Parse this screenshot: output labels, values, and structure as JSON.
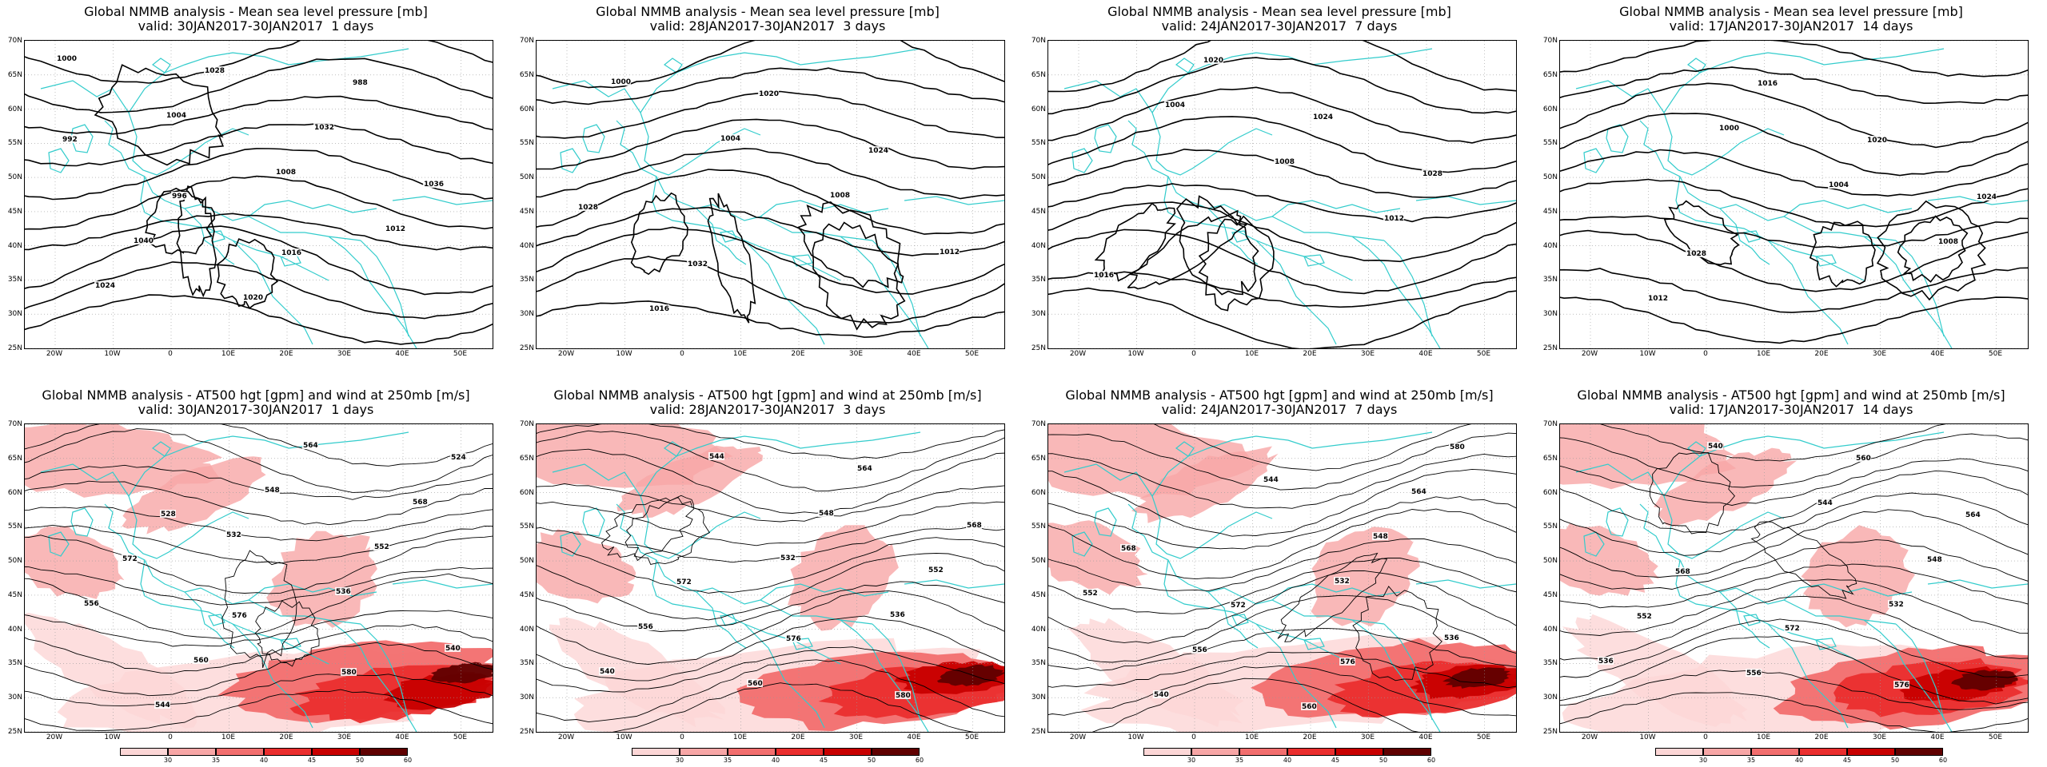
{
  "panels": [
    {
      "row": "mslp",
      "title1": "Global NMMB analysis - Mean sea level pressure [mb]",
      "title2": "valid: 30JAN2017-30JAN2017  1 days",
      "labels": [
        "1000",
        "1004",
        "1008",
        "1012",
        "1024",
        "1028",
        "1032",
        "1036",
        "1040",
        "1020",
        "988",
        "992",
        "996",
        "1016"
      ]
    },
    {
      "row": "mslp",
      "title1": "Global NMMB analysis - Mean sea level pressure [mb]",
      "title2": "valid: 28JAN2017-30JAN2017  3 days",
      "labels": [
        "1000",
        "1004",
        "1008",
        "1012",
        "1016",
        "1020",
        "1024",
        "1028",
        "1032"
      ]
    },
    {
      "row": "mslp",
      "title1": "Global NMMB analysis - Mean sea level pressure [mb]",
      "title2": "valid: 24JAN2017-30JAN2017  7 days",
      "labels": [
        "1004",
        "1008",
        "1012",
        "1016",
        "1020",
        "1024",
        "1028"
      ]
    },
    {
      "row": "mslp",
      "title1": "Global NMMB analysis - Mean sea level pressure [mb]",
      "title2": "valid: 17JAN2017-30JAN2017  14 days",
      "labels": [
        "1000",
        "1004",
        "1008",
        "1012",
        "1016",
        "1020",
        "1024",
        "1028"
      ]
    },
    {
      "row": "z500",
      "title1": "Global NMMB analysis - AT500 hgt [gpm] and wind at 250mb [m/s]",
      "title2": "valid: 30JAN2017-30JAN2017  1 days",
      "labels": [
        "532",
        "536",
        "540",
        "544",
        "548",
        "552",
        "556",
        "560",
        "564",
        "568",
        "572",
        "576",
        "580",
        "524",
        "528"
      ]
    },
    {
      "row": "z500",
      "title1": "Global NMMB analysis - AT500 hgt [gpm] and wind at 250mb [m/s]",
      "title2": "valid: 28JAN2017-30JAN2017  3 days",
      "labels": [
        "532",
        "536",
        "540",
        "544",
        "548",
        "552",
        "556",
        "560",
        "564",
        "568",
        "572",
        "576",
        "580"
      ]
    },
    {
      "row": "z500",
      "title1": "Global NMMB analysis - AT500 hgt [gpm] and wind at 250mb [m/s]",
      "title2": "valid: 24JAN2017-30JAN2017  7 days",
      "labels": [
        "532",
        "536",
        "540",
        "544",
        "548",
        "552",
        "556",
        "560",
        "564",
        "568",
        "572",
        "576",
        "580"
      ]
    },
    {
      "row": "z500",
      "title1": "Global NMMB analysis - AT500 hgt [gpm] and wind at 250mb [m/s]",
      "title2": "valid: 17JAN2017-30JAN2017  14 days",
      "labels": [
        "532",
        "536",
        "540",
        "544",
        "548",
        "552",
        "556",
        "560",
        "564",
        "568",
        "572",
        "576"
      ]
    }
  ],
  "lat_ticks": [
    "70N",
    "65N",
    "60N",
    "55N",
    "50N",
    "45N",
    "40N",
    "35N",
    "30N",
    "25N"
  ],
  "lon_ticks": [
    "20W",
    "10W",
    "0",
    "10E",
    "20E",
    "30E",
    "40E",
    "50E"
  ],
  "colorbar_ticks": [
    "30",
    "35",
    "40",
    "45",
    "50",
    "60"
  ],
  "colors": {
    "coast": "#33cccc",
    "contour": "#000000",
    "wind": [
      "#ffffff",
      "#fcd6d6",
      "#f7a6a6",
      "#f26e6e",
      "#ea2e2e",
      "#c80000",
      "#600000"
    ]
  }
}
